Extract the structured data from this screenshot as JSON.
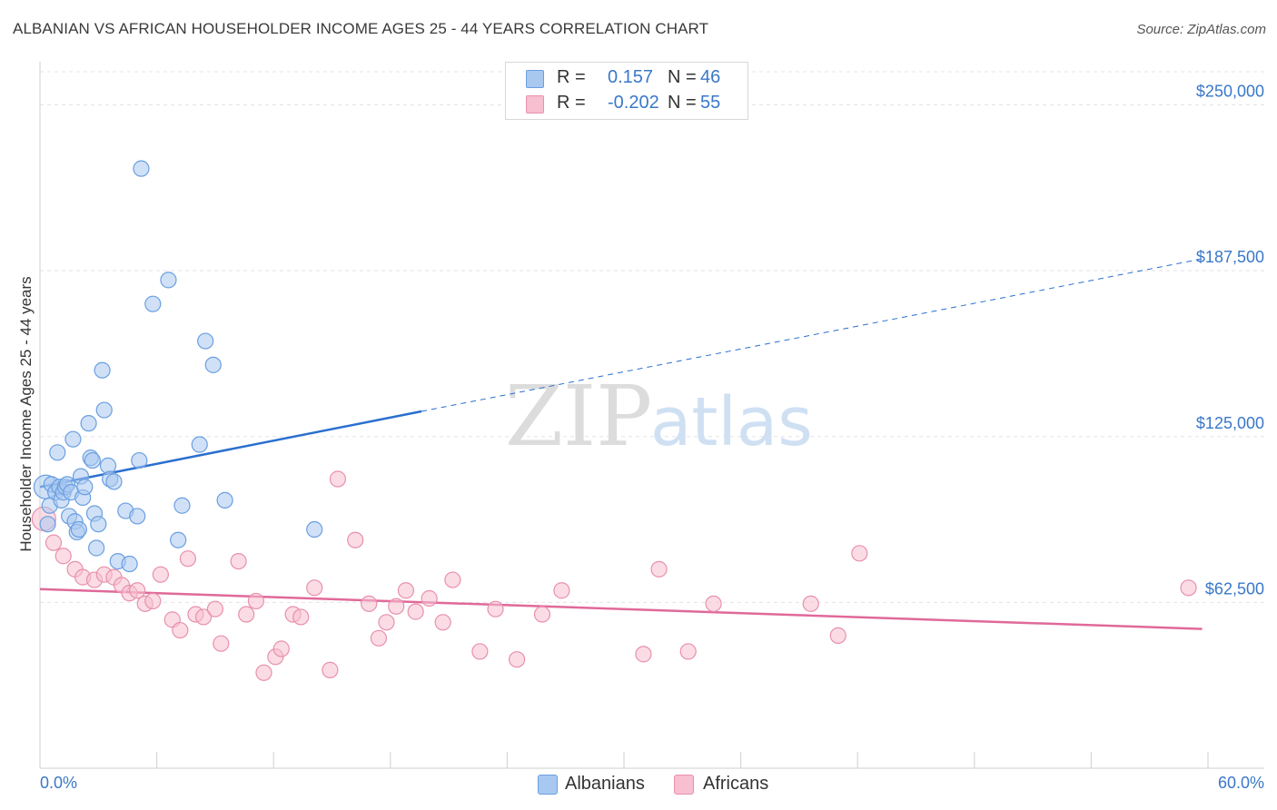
{
  "header": {
    "title": "ALBANIAN VS AFRICAN HOUSEHOLDER INCOME AGES 25 - 44 YEARS CORRELATION CHART",
    "source": "Source: ZipAtlas.com"
  },
  "watermark": {
    "part1": "ZIP",
    "part2": "atlas"
  },
  "legend": {
    "rows": [
      {
        "r_label": "R =",
        "r_value": "0.157",
        "n_label": "N =",
        "n_value": "46",
        "color": "#a9c8f0",
        "border": "#6a9fe0"
      },
      {
        "r_label": "R =",
        "r_value": "-0.202",
        "n_label": "N =",
        "n_value": "55",
        "color": "#f7bfd0",
        "border": "#e890ad"
      }
    ]
  },
  "bottom_legend": {
    "albanians": "Albanians",
    "africans": "Africans"
  },
  "colors": {
    "albanian_fill": "#a9c8f0",
    "albanian_stroke": "#6a9fe0",
    "albanian_line": "#2a6fcf",
    "african_fill": "#f7bfd0",
    "african_stroke": "#e890ad",
    "african_line": "#e0699a",
    "tick_text": "#3a78c9",
    "grid": "#e4e4e4"
  },
  "chart_data": {
    "type": "scatter",
    "title": "ALBANIAN VS AFRICAN HOUSEHOLDER INCOME AGES 25 - 44 YEARS CORRELATION CHART",
    "xlabel": "",
    "ylabel": "Householder Income Ages 25 - 44 years",
    "xlim": [
      0,
      60
    ],
    "ylim": [
      0,
      262500
    ],
    "x_tick_labels": [
      "0.0%",
      "60.0%"
    ],
    "y_ticks": [
      62500,
      125000,
      187500,
      250000
    ],
    "y_tick_labels": [
      "$62,500",
      "$125,000",
      "$187,500",
      "$250,000"
    ],
    "grid": true,
    "series": [
      {
        "name": "Albanians",
        "points": [
          [
            0.3,
            106000
          ],
          [
            0.5,
            99000
          ],
          [
            0.6,
            107000
          ],
          [
            0.8,
            104000
          ],
          [
            0.9,
            119000
          ],
          [
            1.0,
            106000
          ],
          [
            1.1,
            101000
          ],
          [
            1.2,
            104000
          ],
          [
            1.3,
            106000
          ],
          [
            1.4,
            107000
          ],
          [
            1.5,
            95000
          ],
          [
            1.6,
            104000
          ],
          [
            1.7,
            124000
          ],
          [
            1.8,
            93000
          ],
          [
            1.9,
            89000
          ],
          [
            2.0,
            90000
          ],
          [
            2.1,
            110000
          ],
          [
            2.2,
            102000
          ],
          [
            2.3,
            106000
          ],
          [
            2.5,
            130000
          ],
          [
            2.6,
            117000
          ],
          [
            2.7,
            116000
          ],
          [
            2.8,
            96000
          ],
          [
            2.9,
            83000
          ],
          [
            3.0,
            92000
          ],
          [
            3.2,
            150000
          ],
          [
            3.3,
            135000
          ],
          [
            3.5,
            114000
          ],
          [
            3.6,
            109000
          ],
          [
            3.8,
            108000
          ],
          [
            4.0,
            78000
          ],
          [
            5.2,
            226000
          ],
          [
            4.4,
            97000
          ],
          [
            4.6,
            77000
          ],
          [
            5.0,
            95000
          ],
          [
            5.1,
            116000
          ],
          [
            5.8,
            175000
          ],
          [
            6.6,
            184000
          ],
          [
            7.1,
            86000
          ],
          [
            7.3,
            99000
          ],
          [
            8.2,
            122000
          ],
          [
            8.5,
            161000
          ],
          [
            8.9,
            152000
          ],
          [
            9.5,
            101000
          ],
          [
            14.1,
            90000
          ],
          [
            0.4,
            92000
          ]
        ],
        "trend": {
          "x_start": 0,
          "y_start": 106000,
          "x_solid_end": 19.6,
          "y_solid_end": 134500,
          "x_end": 59.7,
          "y_end": 192000
        }
      },
      {
        "name": "Africans",
        "points": [
          [
            0.2,
            94000
          ],
          [
            0.7,
            85000
          ],
          [
            1.2,
            80000
          ],
          [
            1.8,
            75000
          ],
          [
            2.2,
            72000
          ],
          [
            2.8,
            71000
          ],
          [
            3.3,
            73000
          ],
          [
            3.8,
            72000
          ],
          [
            4.2,
            69000
          ],
          [
            4.6,
            66000
          ],
          [
            5.0,
            67000
          ],
          [
            5.4,
            62000
          ],
          [
            5.8,
            63000
          ],
          [
            6.2,
            73000
          ],
          [
            6.8,
            56000
          ],
          [
            7.2,
            52000
          ],
          [
            7.6,
            79000
          ],
          [
            8.0,
            58000
          ],
          [
            8.4,
            57000
          ],
          [
            9.0,
            60000
          ],
          [
            9.3,
            47000
          ],
          [
            10.2,
            78000
          ],
          [
            10.6,
            58000
          ],
          [
            11.1,
            63000
          ],
          [
            11.5,
            36000
          ],
          [
            12.1,
            42000
          ],
          [
            12.4,
            45000
          ],
          [
            13.0,
            58000
          ],
          [
            13.4,
            57000
          ],
          [
            14.1,
            68000
          ],
          [
            14.9,
            37000
          ],
          [
            15.3,
            109000
          ],
          [
            16.2,
            86000
          ],
          [
            16.9,
            62000
          ],
          [
            17.4,
            49000
          ],
          [
            17.8,
            55000
          ],
          [
            18.3,
            61000
          ],
          [
            18.8,
            67000
          ],
          [
            19.3,
            59000
          ],
          [
            20.0,
            64000
          ],
          [
            20.7,
            55000
          ],
          [
            21.2,
            71000
          ],
          [
            22.6,
            44000
          ],
          [
            23.4,
            60000
          ],
          [
            24.5,
            41000
          ],
          [
            25.8,
            58000
          ],
          [
            26.8,
            67000
          ],
          [
            31.0,
            43000
          ],
          [
            31.8,
            75000
          ],
          [
            33.3,
            44000
          ],
          [
            34.6,
            62000
          ],
          [
            39.6,
            62000
          ],
          [
            41.0,
            50000
          ],
          [
            42.1,
            81000
          ],
          [
            59.0,
            68000
          ]
        ],
        "trend": {
          "x_start": 0,
          "y_start": 67500,
          "x_end": 59.7,
          "y_end": 52500
        }
      }
    ]
  }
}
